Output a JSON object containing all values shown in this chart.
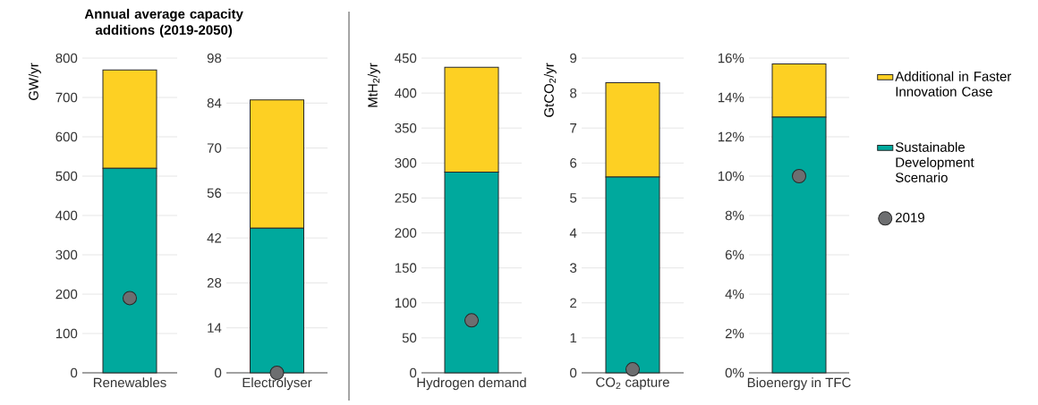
{
  "chart_data": [
    {
      "type": "bar",
      "stacked": true,
      "grid": "y",
      "marker": "circle",
      "title": "Annual average capacity additions (2019-2050)",
      "ylabel": "GW/yr",
      "categories": [
        "Renewables"
      ],
      "ylim": [
        0,
        800
      ],
      "yticks": [
        0,
        100,
        200,
        300,
        400,
        500,
        600,
        700,
        800
      ],
      "series": [
        {
          "color": "#00a99d",
          "values": [
            520
          ]
        },
        {
          "color": "#fdd023",
          "values": [
            250
          ]
        },
        {
          "type": "scatter",
          "color": "#6d6e70",
          "x": [
            "Renewables"
          ],
          "values": [
            190
          ]
        }
      ]
    },
    {
      "type": "bar",
      "stacked": true,
      "grid": "y",
      "marker": "circle",
      "categories": [
        "Electrolyser"
      ],
      "ylim": [
        0,
        98
      ],
      "yticks": [
        0,
        14,
        28,
        42,
        56,
        70,
        84,
        98
      ],
      "series": [
        {
          "color": "#00a99d",
          "values": [
            45
          ]
        },
        {
          "color": "#fdd023",
          "values": [
            40
          ]
        },
        {
          "type": "scatter",
          "color": "#6d6e70",
          "x": [
            "Electrolyser"
          ],
          "values": [
            0
          ]
        }
      ]
    },
    {
      "type": "bar",
      "stacked": true,
      "grid": "y",
      "marker": "circle",
      "ylabel": "MtH$_{2}$/yr",
      "categories": [
        "Hydrogen demand"
      ],
      "ylim": [
        0,
        450
      ],
      "yticks": [
        0,
        50,
        100,
        150,
        200,
        250,
        300,
        350,
        400,
        450
      ],
      "series": [
        {
          "color": "#00a99d",
          "values": [
            287
          ]
        },
        {
          "color": "#fdd023",
          "values": [
            150
          ]
        },
        {
          "type": "scatter",
          "color": "#6d6e70",
          "x": [
            "Hydrogen demand"
          ],
          "values": [
            75
          ]
        }
      ]
    },
    {
      "type": "bar",
      "stacked": true,
      "grid": "y",
      "marker": "circle",
      "ylabel": "GtCO$_{2}$/yr",
      "categories": [
        "CO$_{2}$ capture"
      ],
      "ylim": [
        0,
        9
      ],
      "yticks": [
        0,
        1,
        2,
        3,
        4,
        5,
        6,
        7,
        8,
        9
      ],
      "series": [
        {
          "color": "#00a99d",
          "values": [
            5.6
          ]
        },
        {
          "color": "#fdd023",
          "values": [
            2.7
          ]
        },
        {
          "type": "scatter",
          "color": "#6d6e70",
          "x": [
            "CO$_{2}$ capture"
          ],
          "values": [
            0.1
          ]
        }
      ]
    },
    {
      "type": "bar",
      "stacked": true,
      "grid": "y",
      "marker": "circle",
      "legend": "right",
      "categories": [
        "Bioenergy in TFC"
      ],
      "ylim": [
        0,
        16
      ],
      "yticks": [
        {
          "value": 0,
          "label": "0%"
        },
        {
          "value": 2,
          "label": "2%"
        },
        {
          "value": 4,
          "label": "4%"
        },
        {
          "value": 6,
          "label": "6%"
        },
        {
          "value": 8,
          "label": "8%"
        },
        {
          "value": 10,
          "label": "10%"
        },
        {
          "value": 12,
          "label": "12%"
        },
        {
          "value": 14,
          "label": "14%"
        },
        {
          "value": 16,
          "label": "16%"
        }
      ],
      "series": [
        {
          "name": "Sustainable Development Scenario",
          "color": "#00a99d",
          "values": [
            13.0
          ]
        },
        {
          "name": "Additional in Faster Innovation Case",
          "color": "#fdd023",
          "values": [
            2.7
          ]
        },
        {
          "name": "2019",
          "type": "scatter",
          "color": "#6d6e70",
          "x": [
            "Bioenergy in TFC"
          ],
          "values": [
            10
          ]
        }
      ]
    }
  ]
}
